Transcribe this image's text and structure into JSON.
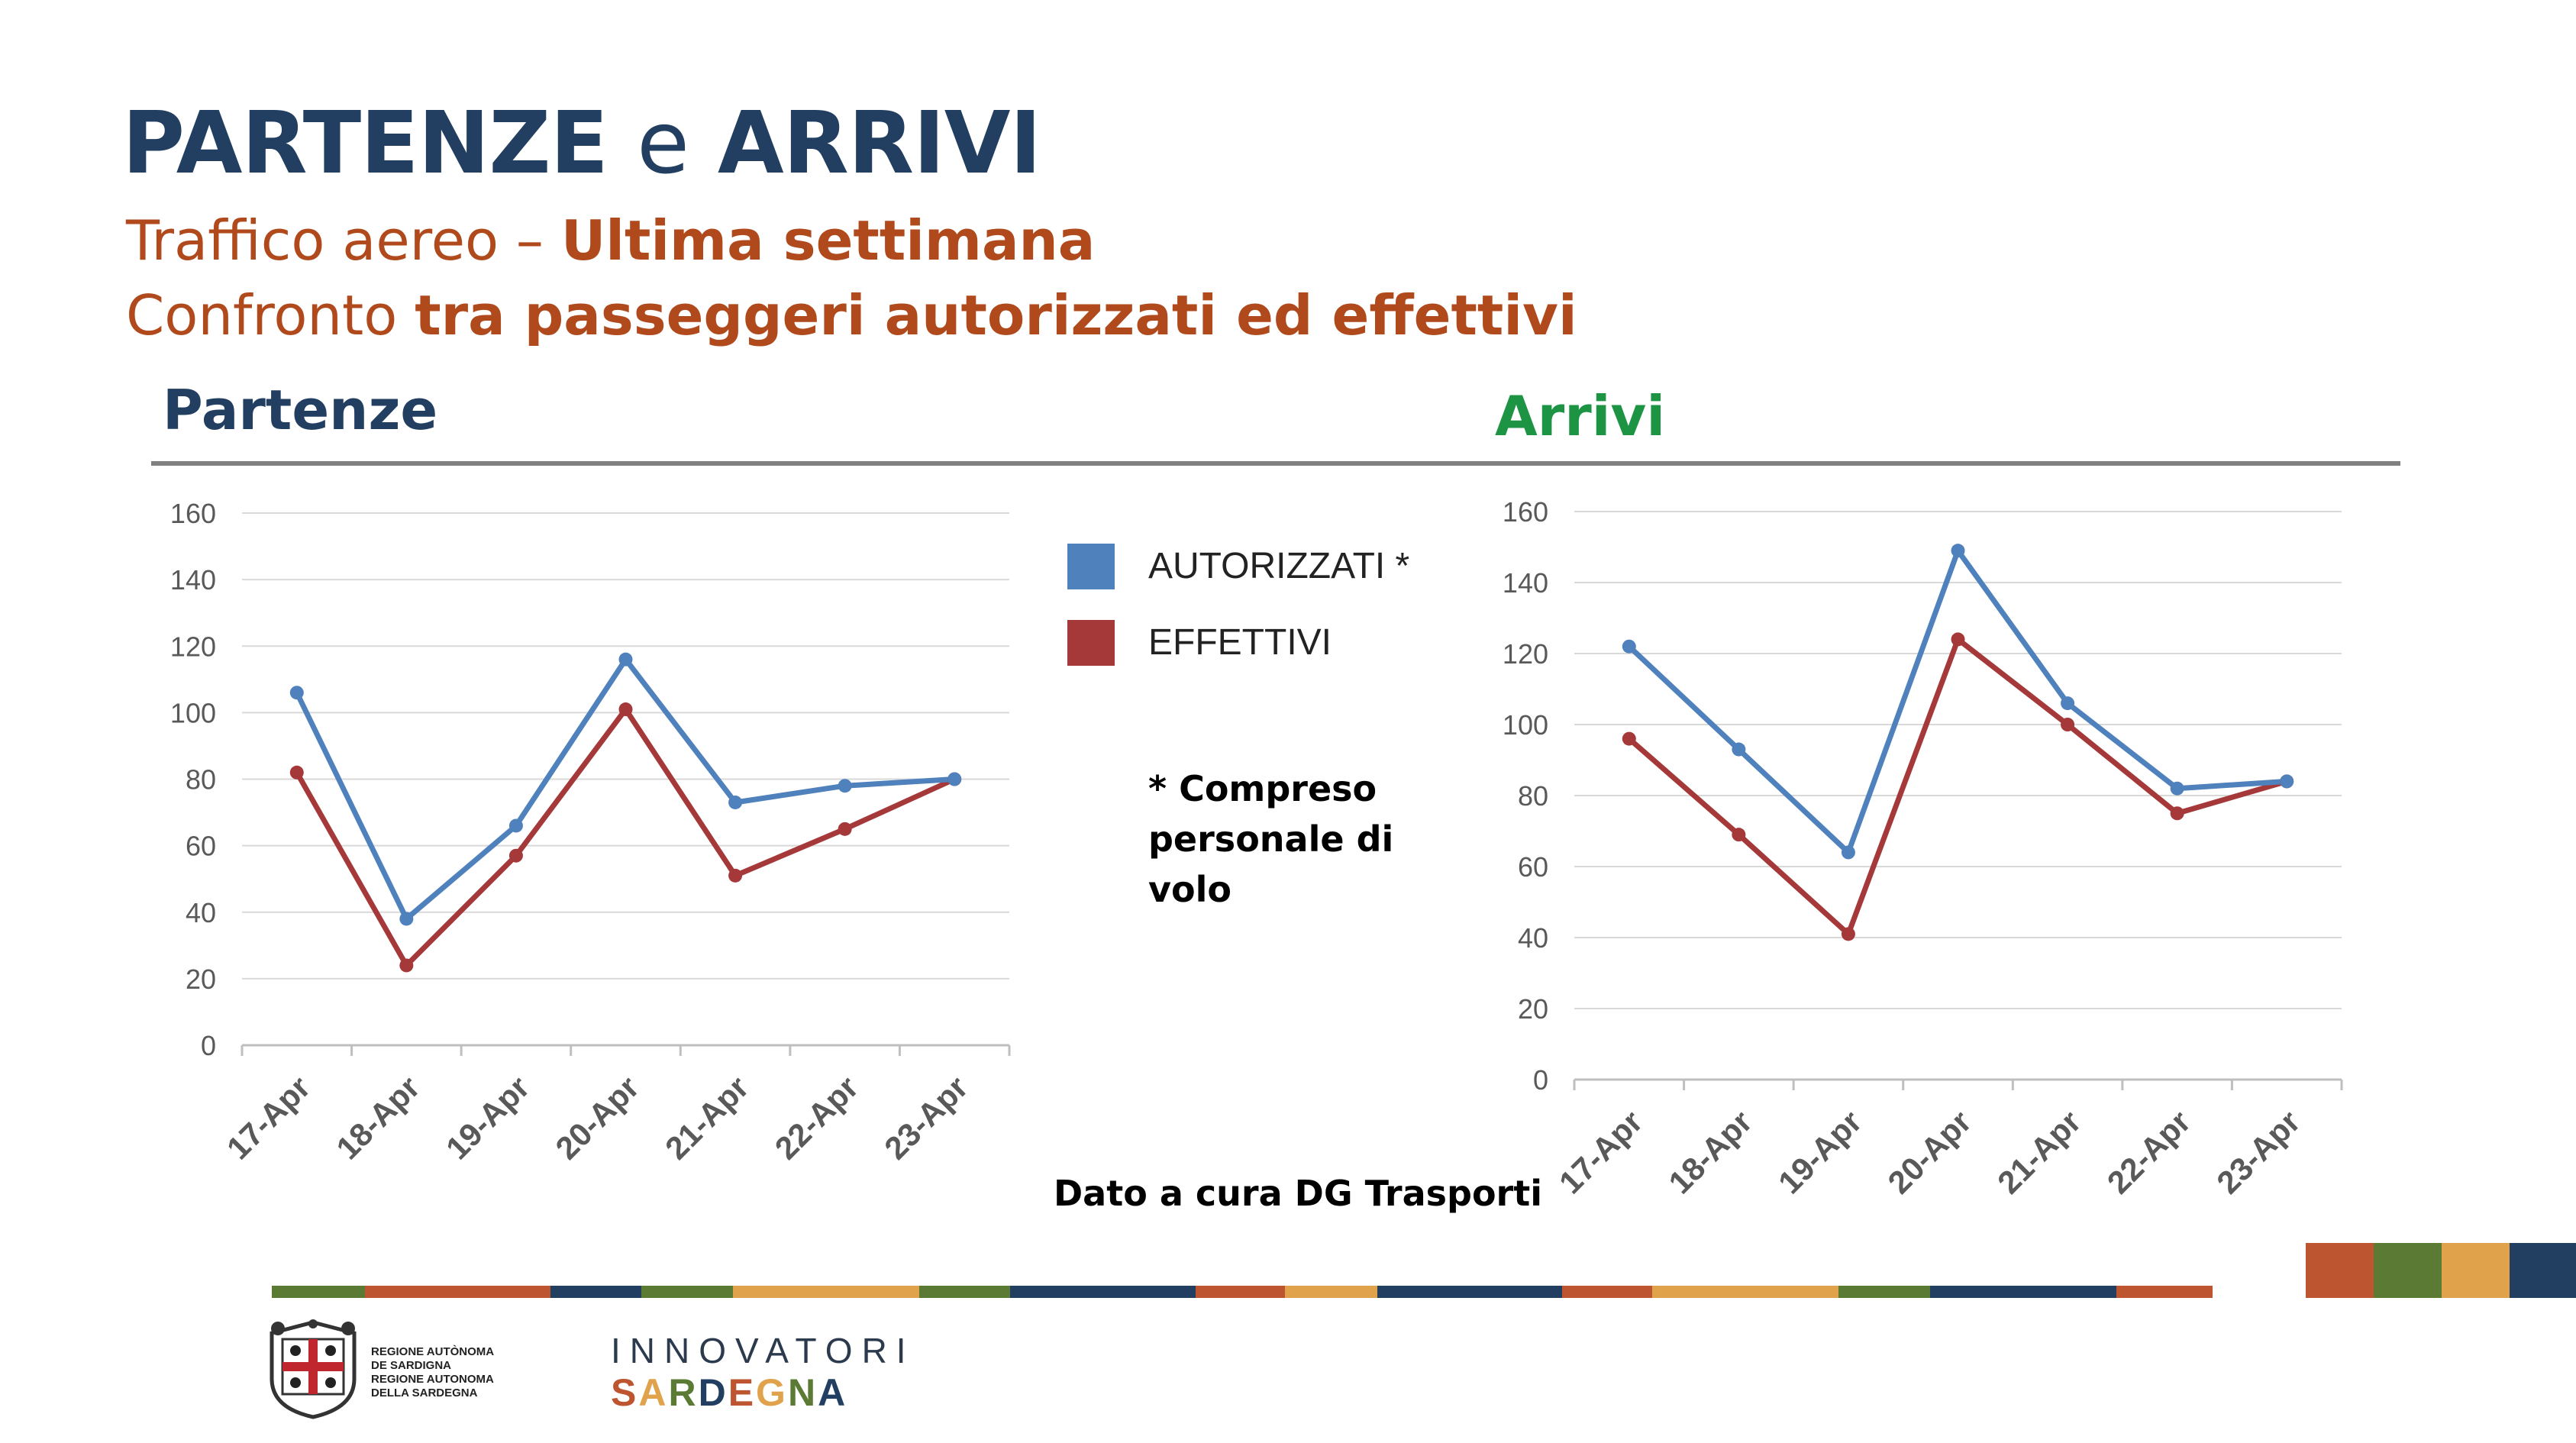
{
  "header": {
    "title_part1": "PARTENZE",
    "title_joiner": "e",
    "title_part2": "ARRIVI",
    "subtitle1_normal": "Traffico aereo – ",
    "subtitle1_bold": "Ultima settimana",
    "subtitle2_normal": "Confronto ",
    "subtitle2_bold": "tra passeggeri autorizzati ed effettivi"
  },
  "legend": {
    "items": [
      {
        "label": "AUTORIZZATI *",
        "color": "#4f81bd"
      },
      {
        "label": "EFFETTIVI",
        "color": "#a5393a"
      }
    ]
  },
  "footnote": "* Compreso personale di volo",
  "source_note": "Dato a cura DG Trasporti",
  "colors": {
    "title": "#223f62",
    "subtitle": "#b04a1c",
    "arrivi_title": "#1c9444",
    "authorized_line": "#4f81bd",
    "effective_line": "#a5393a",
    "stripe_segments": [
      "#5b7a34",
      "#bd5530",
      "#bd5530",
      "#223f62",
      "#5b7a34",
      "#e0a24a",
      "#e0a24a",
      "#5b7a34",
      "#223f62",
      "#223f62",
      "#bd5530",
      "#e0a24a",
      "#223f62",
      "#223f62",
      "#bd5530",
      "#e0a24a",
      "#e0a24a",
      "#5b7a34",
      "#223f62",
      "#223f62",
      "#bd5530"
    ],
    "corner_blocks": [
      "#bd5530",
      "#5b7a34",
      "#e0a24a",
      "#223f62"
    ]
  },
  "footer": {
    "region_lines": [
      "REGIONE AUTÒNOMA",
      "DE SARDIGNA",
      "REGIONE AUTONOMA",
      "DELLA SARDEGNA"
    ],
    "brand_top": "INNOVATORI",
    "brand_bottom": "SARDEGNA",
    "brand_bottom_colors": [
      "#bd5530",
      "#e0a24a",
      "#5b7a34",
      "#223f62",
      "#bd5530",
      "#e0a24a",
      "#5b7a34",
      "#223f62"
    ]
  },
  "chart_data": [
    {
      "type": "line",
      "title": "Partenze",
      "categories": [
        "17-Apr",
        "18-Apr",
        "19-Apr",
        "20-Apr",
        "21-Apr",
        "22-Apr",
        "23-Apr"
      ],
      "series": [
        {
          "name": "AUTORIZZATI *",
          "values": [
            106,
            38,
            66,
            116,
            73,
            78,
            80
          ]
        },
        {
          "name": "EFFETTIVI",
          "values": [
            82,
            24,
            57,
            101,
            51,
            65,
            80
          ]
        }
      ],
      "ylim": [
        0,
        160
      ],
      "yticks": [
        0,
        20,
        40,
        60,
        80,
        100,
        120,
        140,
        160
      ],
      "grid": true
    },
    {
      "type": "line",
      "title": "Arrivi",
      "categories": [
        "17-Apr",
        "18-Apr",
        "19-Apr",
        "20-Apr",
        "21-Apr",
        "22-Apr",
        "23-Apr"
      ],
      "series": [
        {
          "name": "AUTORIZZATI *",
          "values": [
            122,
            93,
            64,
            149,
            106,
            82,
            84
          ]
        },
        {
          "name": "EFFETTIVI",
          "values": [
            96,
            69,
            41,
            124,
            100,
            75,
            84
          ]
        }
      ],
      "ylim": [
        0,
        160
      ],
      "yticks": [
        0,
        20,
        40,
        60,
        80,
        100,
        120,
        140,
        160
      ],
      "grid": true
    }
  ]
}
